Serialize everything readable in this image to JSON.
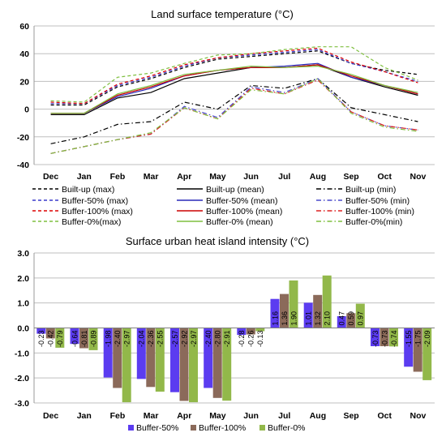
{
  "chart_data": [
    {
      "type": "line",
      "title": "Land surface temperature (°C)",
      "categories": [
        "Dec",
        "Jan",
        "Feb",
        "Mar",
        "Apr",
        "May",
        "Jun",
        "Jul",
        "Aug",
        "Sep",
        "Oct",
        "Nov"
      ],
      "ylim": [
        -40,
        60
      ],
      "yticks": [
        -40,
        -20,
        0,
        20,
        40,
        60
      ],
      "grid": "horizontal",
      "legend_placement": "bottom",
      "series": [
        {
          "name": "Built-up (max)",
          "color": "#000000",
          "dash": "dashed",
          "values": [
            3,
            3,
            16,
            22,
            30,
            36,
            38,
            40,
            42,
            33,
            28,
            25
          ]
        },
        {
          "name": "Built-up (mean)",
          "color": "#000000",
          "dash": "solid",
          "values": [
            -4,
            -4,
            8,
            12,
            22,
            26,
            30,
            30,
            32,
            23,
            16,
            10
          ]
        },
        {
          "name": "Built-up (min)",
          "color": "#000000",
          "dash": "dashdot",
          "values": [
            -25,
            -20,
            -11,
            -9,
            5,
            0,
            17,
            15,
            22,
            1,
            -4,
            -9
          ]
        },
        {
          "name": "Buffer-50% (max)",
          "color": "#3a3acc",
          "dash": "dashed",
          "values": [
            4,
            4,
            17,
            23,
            31,
            37,
            39,
            41,
            43,
            33,
            27,
            20
          ]
        },
        {
          "name": "Buffer-50% (mean)",
          "color": "#2828b8",
          "dash": "solid",
          "values": [
            -3,
            -3,
            9,
            15,
            24,
            28,
            30,
            31,
            33,
            23,
            17,
            11
          ]
        },
        {
          "name": "Buffer-50% (min)",
          "color": "#4a4acc",
          "dash": "dashdot",
          "values": [
            -32,
            -27,
            -22,
            -18,
            2,
            -6,
            16,
            12,
            22,
            -2,
            -12,
            -15
          ]
        },
        {
          "name": "Buffer-100% (max)",
          "color": "#dd0000",
          "dash": "dashed",
          "values": [
            5,
            4,
            18,
            24,
            32,
            37,
            40,
            42,
            44,
            34,
            27,
            19
          ]
        },
        {
          "name": "Buffer-100% (mean)",
          "color": "#cc0000",
          "dash": "solid",
          "values": [
            -3,
            -3,
            10,
            16,
            24,
            28,
            30,
            30,
            32,
            24,
            17,
            11
          ]
        },
        {
          "name": "Buffer-100% (min)",
          "color": "#dd2222",
          "dash": "dashdot",
          "values": [
            -32,
            -27,
            -22,
            -18,
            1,
            -7,
            15,
            11,
            21,
            -2,
            -12,
            -15
          ]
        },
        {
          "name": "Buffer-0%(max)",
          "color": "#7fbf3f",
          "dash": "dashed",
          "values": [
            6,
            5,
            23,
            26,
            33,
            39,
            40,
            43,
            45,
            45,
            30,
            21
          ]
        },
        {
          "name": "Buffer-0% (mean)",
          "color": "#7fbf3f",
          "dash": "solid",
          "values": [
            -3,
            -3,
            11,
            17,
            25,
            28,
            31,
            30,
            31,
            25,
            17,
            12
          ]
        },
        {
          "name": "Buffer-0%(min)",
          "color": "#7fbf3f",
          "dash": "dashdot",
          "values": [
            -32,
            -27,
            -22,
            -17,
            1,
            -7,
            14,
            11,
            22,
            -3,
            -13,
            -16
          ]
        }
      ]
    },
    {
      "type": "bar",
      "title": "Surface urban heat island intensity (°C)",
      "categories": [
        "Dec",
        "Jan",
        "Feb",
        "Mar",
        "Apr",
        "May",
        "Jun",
        "Jul",
        "Aug",
        "Sep",
        "Oct",
        "Nov"
      ],
      "ylim": [
        -3.0,
        3.0
      ],
      "yticks": [
        -3.0,
        -2.0,
        -1.0,
        0.0,
        1.0,
        2.0,
        3.0
      ],
      "ytick_labels": [
        "-3.0",
        "-2.0",
        "-1.0",
        "0.0",
        "1.0",
        "2.0",
        "3.0"
      ],
      "grid": "horizontal",
      "legend_placement": "bottom",
      "series": [
        {
          "name": "Buffer-50%",
          "color": "#5b3cf0",
          "values": [
            -0.23,
            -0.64,
            -1.98,
            -2.04,
            -2.57,
            -2.4,
            -0.28,
            1.16,
            1.01,
            0.47,
            -0.73,
            -1.55
          ],
          "labels": [
            "-0.23",
            "-0.64",
            "-1.98",
            "-2.04",
            "-2.57",
            "-2.40",
            "-0.28",
            "1.16",
            "1.01",
            "0.47",
            "-0.73",
            "-1.55"
          ]
        },
        {
          "name": "Buffer-100%",
          "color": "#8b6a5a",
          "values": [
            -0.42,
            -0.81,
            -2.4,
            -2.36,
            -2.92,
            -2.8,
            -0.26,
            1.36,
            1.32,
            0.59,
            -0.73,
            -1.75
          ],
          "labels": [
            "-0.42",
            "-0.81",
            "-2.40",
            "-2.36",
            "-2.92",
            "-2.80",
            "-0.26",
            "1.36",
            "1.32",
            "0.59",
            "-0.73",
            "-1.75"
          ]
        },
        {
          "name": "Buffer-0%",
          "color": "#92b84a",
          "values": [
            -0.79,
            -0.89,
            -2.97,
            -2.55,
            -2.97,
            -2.91,
            -0.13,
            1.9,
            2.1,
            0.97,
            -0.74,
            -2.09
          ],
          "labels": [
            "-0.79",
            "-0.89",
            "-2.97",
            "-2.55",
            "-2.97",
            "-2.91",
            "-0.13",
            "1.90",
            "2.10",
            "0.97",
            "-0.74",
            "-2.09"
          ]
        }
      ]
    }
  ]
}
